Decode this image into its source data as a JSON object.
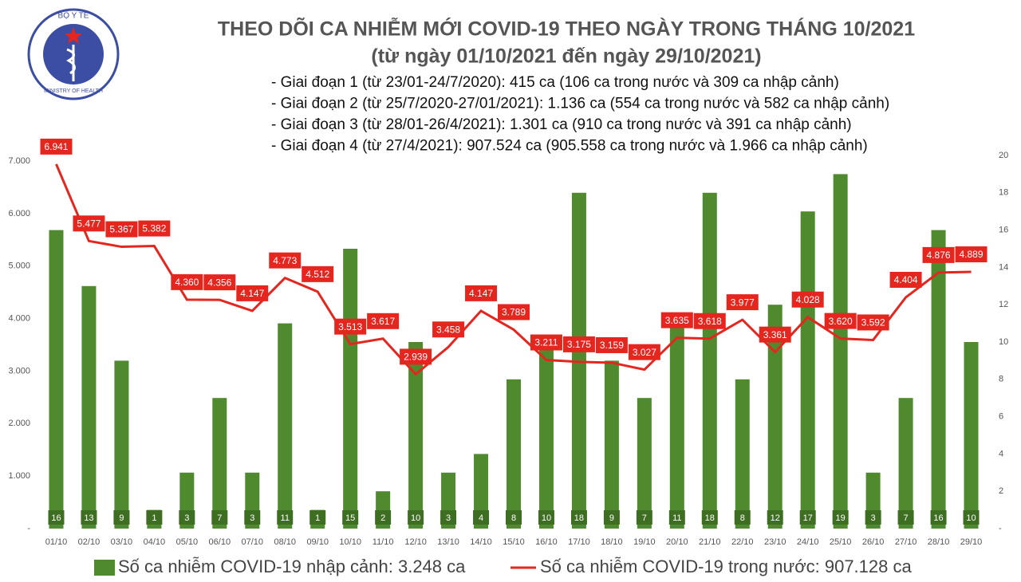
{
  "logo": {
    "top": "BỘ Y TẾ",
    "bottom": "MINISTRY OF HEALTH"
  },
  "chart_data": {
    "type": "combo",
    "title": "THEO DÕI CA NHIỄM MỚI COVID-19 THEO NGÀY TRONG THÁNG 10/2021",
    "subtitle": "(từ ngày 01/10/2021 đến ngày 29/10/2021)",
    "notes": [
      "- Giai đoạn 1 (từ 23/01-24/7/2020): 415 ca (106 ca trong nước và 309 ca nhập cảnh)",
      "- Giai đoạn 2 (từ 25/7/2020-27/01/2021): 1.136 ca (554 ca trong nước và 582 ca nhập cảnh)",
      "- Giai đoạn 3 (từ 28/01-26/4/2021): 1.301 ca (910 ca trong nước và 391 ca nhập cảnh)",
      "- Giai đoạn 4 (từ 27/4/2021): 907.524 ca (905.558 ca trong nước và 1.966 ca nhập cảnh)"
    ],
    "categories": [
      "01/10",
      "02/10",
      "03/10",
      "04/10",
      "05/10",
      "06/10",
      "07/10",
      "08/10",
      "09/10",
      "10/10",
      "11/10",
      "12/10",
      "13/10",
      "14/10",
      "15/10",
      "16/10",
      "17/10",
      "18/10",
      "19/10",
      "20/10",
      "21/10",
      "22/10",
      "23/10",
      "24/10",
      "25/10",
      "26/10",
      "27/10",
      "28/10",
      "29/10"
    ],
    "series": [
      {
        "name": "Số ca nhiễm COVID-19 nhập cảnh: 3.248 ca",
        "type": "bar",
        "axis": "y2",
        "color": "#4f8a2f",
        "values": [
          16,
          13,
          9,
          1,
          3,
          7,
          3,
          11,
          1,
          15,
          2,
          10,
          3,
          4,
          8,
          10,
          18,
          9,
          7,
          11,
          18,
          8,
          12,
          17,
          19,
          3,
          7,
          16,
          10
        ]
      },
      {
        "name": "Số ca nhiễm COVID-19 trong nước: 907.128 ca",
        "type": "line",
        "color": "#e5261f",
        "values": [
          6941,
          5477,
          5367,
          5382,
          4360,
          4356,
          4147,
          4773,
          4512,
          3513,
          3617,
          2939,
          3458,
          4147,
          3789,
          3211,
          3175,
          3159,
          3027,
          3635,
          3618,
          3977,
          3361,
          4028,
          3620,
          3592,
          4404,
          4876,
          4889
        ],
        "value_labels": [
          "6.941",
          "5.477",
          "5.367",
          "5.382",
          "4.360",
          "4.356",
          "4.147",
          "4.773",
          "4.512",
          "3.513",
          "3.617",
          "2.939",
          "3.458",
          "4.147",
          "3.789",
          "3.211",
          "3.175",
          "3.159",
          "3.027",
          "3.635",
          "3.618",
          "3.977",
          "3.361",
          "4.028",
          "3.620",
          "3.592",
          "4.404",
          "4.876",
          "4.889"
        ]
      }
    ],
    "ylim": [
      0,
      7000
    ],
    "yticks": [
      {
        "value": 0,
        "label": "-"
      },
      {
        "value": 1000,
        "label": "1.000"
      },
      {
        "value": 2000,
        "label": "2.000"
      },
      {
        "value": 3000,
        "label": "3.000"
      },
      {
        "value": 4000,
        "label": "4.000"
      },
      {
        "value": 5000,
        "label": "5.000"
      },
      {
        "value": 6000,
        "label": "6.000"
      },
      {
        "value": 7000,
        "label": "7.000"
      }
    ],
    "y2lim": [
      0,
      20
    ],
    "y2ticks": [
      {
        "value": 0,
        "label": "-"
      },
      2,
      4,
      6,
      8,
      10,
      12,
      14,
      16,
      18,
      20
    ]
  }
}
